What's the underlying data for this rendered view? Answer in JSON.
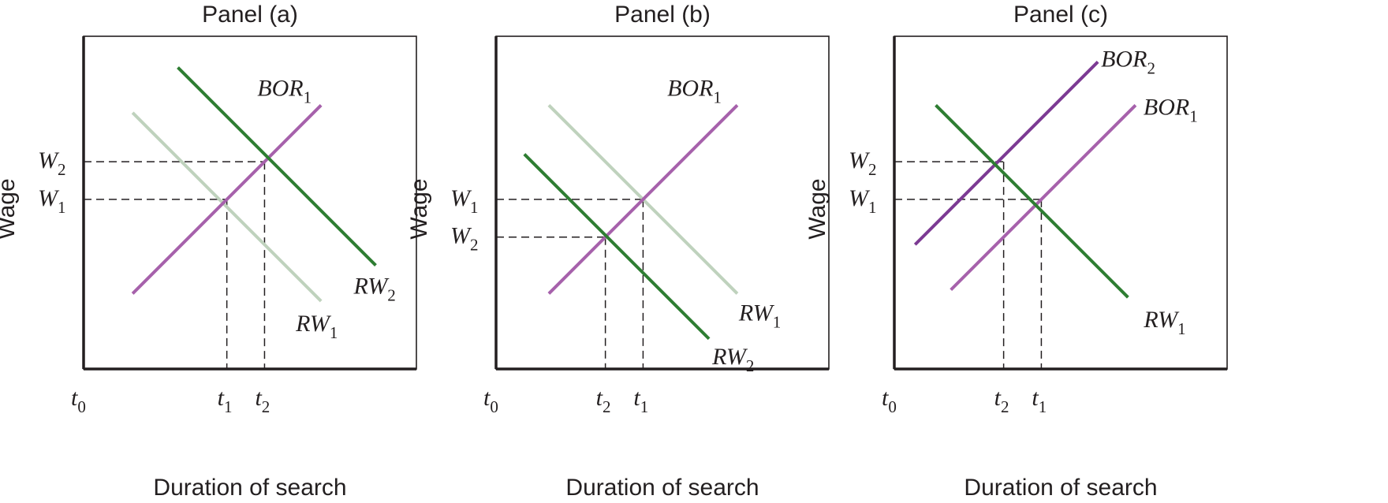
{
  "colors": {
    "bor_line": "#a661ab",
    "bor2_line": "#7c3a93",
    "rw_line": "#2e7d32",
    "rw_faded_line": "#bfd2bd",
    "axis": "#231f20",
    "background": "#ffffff"
  },
  "panels": [
    {
      "title": "Panel (a)",
      "ylabel": "Wage",
      "xlabel": "Duration of search",
      "origin_label": {
        "main": "t",
        "sub": "0"
      },
      "curves": [
        {
          "id": "bor1",
          "type": "BOR",
          "style": "bor",
          "label": {
            "main": "BOR",
            "sub": "1"
          },
          "from": [
            1.3,
            2.0
          ],
          "to": [
            6.3,
            7.0
          ]
        },
        {
          "id": "rw1",
          "type": "RW",
          "style": "faded",
          "label": {
            "main": "RW",
            "sub": "1"
          },
          "from": [
            1.3,
            6.8
          ],
          "to": [
            6.3,
            1.8
          ]
        },
        {
          "id": "rw2",
          "type": "RW",
          "style": "rw",
          "label": {
            "main": "RW",
            "sub": "2"
          },
          "from": [
            2.5,
            8.0
          ],
          "to": [
            7.75,
            2.75
          ]
        }
      ],
      "intersections": [
        {
          "at": [
            3.8,
            4.5
          ],
          "wage_label": {
            "main": "W",
            "sub": "1"
          },
          "time_label": {
            "main": "t",
            "sub": "1"
          }
        },
        {
          "at": [
            4.8,
            5.5
          ],
          "wage_label": {
            "main": "W",
            "sub": "2"
          },
          "time_label": {
            "main": "t",
            "sub": "2"
          }
        }
      ]
    },
    {
      "title": "Panel (b)",
      "ylabel": "Wage",
      "xlabel": "Duration of search",
      "origin_label": {
        "main": "t",
        "sub": "0"
      },
      "curves": [
        {
          "id": "bor1",
          "type": "BOR",
          "style": "bor",
          "label": {
            "main": "BOR",
            "sub": "1"
          },
          "from": [
            1.4,
            2.0
          ],
          "to": [
            6.4,
            7.0
          ]
        },
        {
          "id": "rw1",
          "type": "RW",
          "style": "faded",
          "label": {
            "main": "RW",
            "sub": "1"
          },
          "from": [
            1.4,
            7.0
          ],
          "to": [
            6.4,
            2.0
          ]
        },
        {
          "id": "rw2",
          "type": "RW",
          "style": "rw",
          "label": {
            "main": "RW",
            "sub": "2"
          },
          "from": [
            0.75,
            5.7
          ],
          "to": [
            5.65,
            0.8
          ]
        }
      ],
      "intersections": [
        {
          "at": [
            3.9,
            4.5
          ],
          "wage_label": {
            "main": "W",
            "sub": "1"
          },
          "time_label": {
            "main": "t",
            "sub": "1"
          }
        },
        {
          "at": [
            2.9,
            3.5
          ],
          "wage_label": {
            "main": "W",
            "sub": "2"
          },
          "time_label": {
            "main": "t",
            "sub": "2"
          }
        }
      ]
    },
    {
      "title": "Panel (c)",
      "ylabel": "Wage",
      "xlabel": "Duration of search",
      "origin_label": {
        "main": "t",
        "sub": "0"
      },
      "curves": [
        {
          "id": "bor2",
          "type": "BOR",
          "style": "bor2",
          "label": {
            "main": "BOR",
            "sub": "2"
          },
          "from": [
            0.55,
            3.3
          ],
          "to": [
            5.4,
            8.15
          ]
        },
        {
          "id": "bor1",
          "type": "BOR",
          "style": "bor",
          "label": {
            "main": "BOR",
            "sub": "1"
          },
          "from": [
            1.5,
            2.1
          ],
          "to": [
            6.4,
            7.0
          ]
        },
        {
          "id": "rw1",
          "type": "RW",
          "style": "rw",
          "label": {
            "main": "RW",
            "sub": "1"
          },
          "from": [
            1.1,
            7.0
          ],
          "to": [
            6.2,
            1.9
          ]
        }
      ],
      "intersections": [
        {
          "at": [
            3.9,
            4.5
          ],
          "wage_label": {
            "main": "W",
            "sub": "1"
          },
          "time_label": {
            "main": "t",
            "sub": "1"
          }
        },
        {
          "at": [
            2.9,
            5.5
          ],
          "wage_label": {
            "main": "W",
            "sub": "2"
          },
          "time_label": {
            "main": "t",
            "sub": "2"
          }
        }
      ]
    }
  ]
}
